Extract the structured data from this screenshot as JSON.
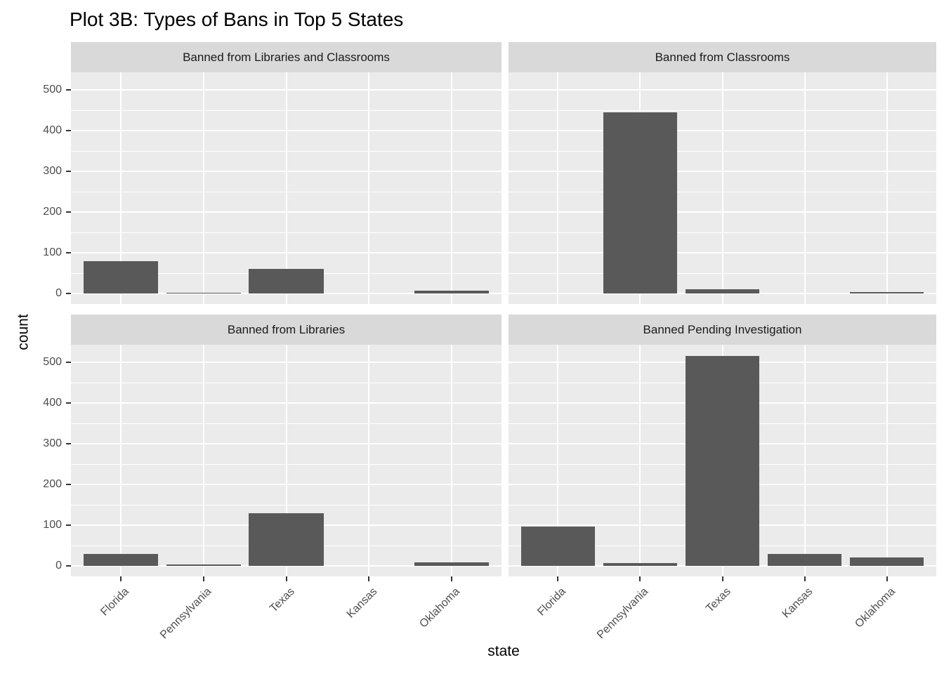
{
  "title": "Plot 3B: Types of Bans in Top 5 States",
  "chart_data": {
    "type": "bar",
    "faceted": true,
    "facet_layout": "2x2",
    "categories": [
      "Florida",
      "Pennsylvania",
      "Texas",
      "Kansas",
      "Oklahoma"
    ],
    "xlabel": "state",
    "ylabel": "count",
    "y_ticks": [
      0,
      100,
      200,
      300,
      400,
      500
    ],
    "y_minor_ticks": [
      50,
      150,
      250,
      350,
      450
    ],
    "ylim": [
      -26,
      544
    ],
    "grid": true,
    "legend": "none",
    "facets": [
      {
        "label": "Banned from Libraries and Classrooms",
        "values": [
          80,
          2,
          61,
          0,
          7
        ]
      },
      {
        "label": "Banned from Classrooms",
        "values": [
          0,
          445,
          11,
          0,
          4
        ]
      },
      {
        "label": "Banned from Libraries",
        "values": [
          29,
          3,
          129,
          0,
          8
        ]
      },
      {
        "label": "Banned Pending Investigation",
        "values": [
          96,
          7,
          516,
          30,
          20
        ]
      }
    ],
    "colors": {
      "bar": "#595959",
      "panel_bg": "#ebebeb",
      "strip_bg": "#d9d9d9",
      "gridline": "#ffffff",
      "axis_text": "#4d4d4d",
      "tick_mark": "#333333",
      "title_text": "#000000"
    }
  }
}
